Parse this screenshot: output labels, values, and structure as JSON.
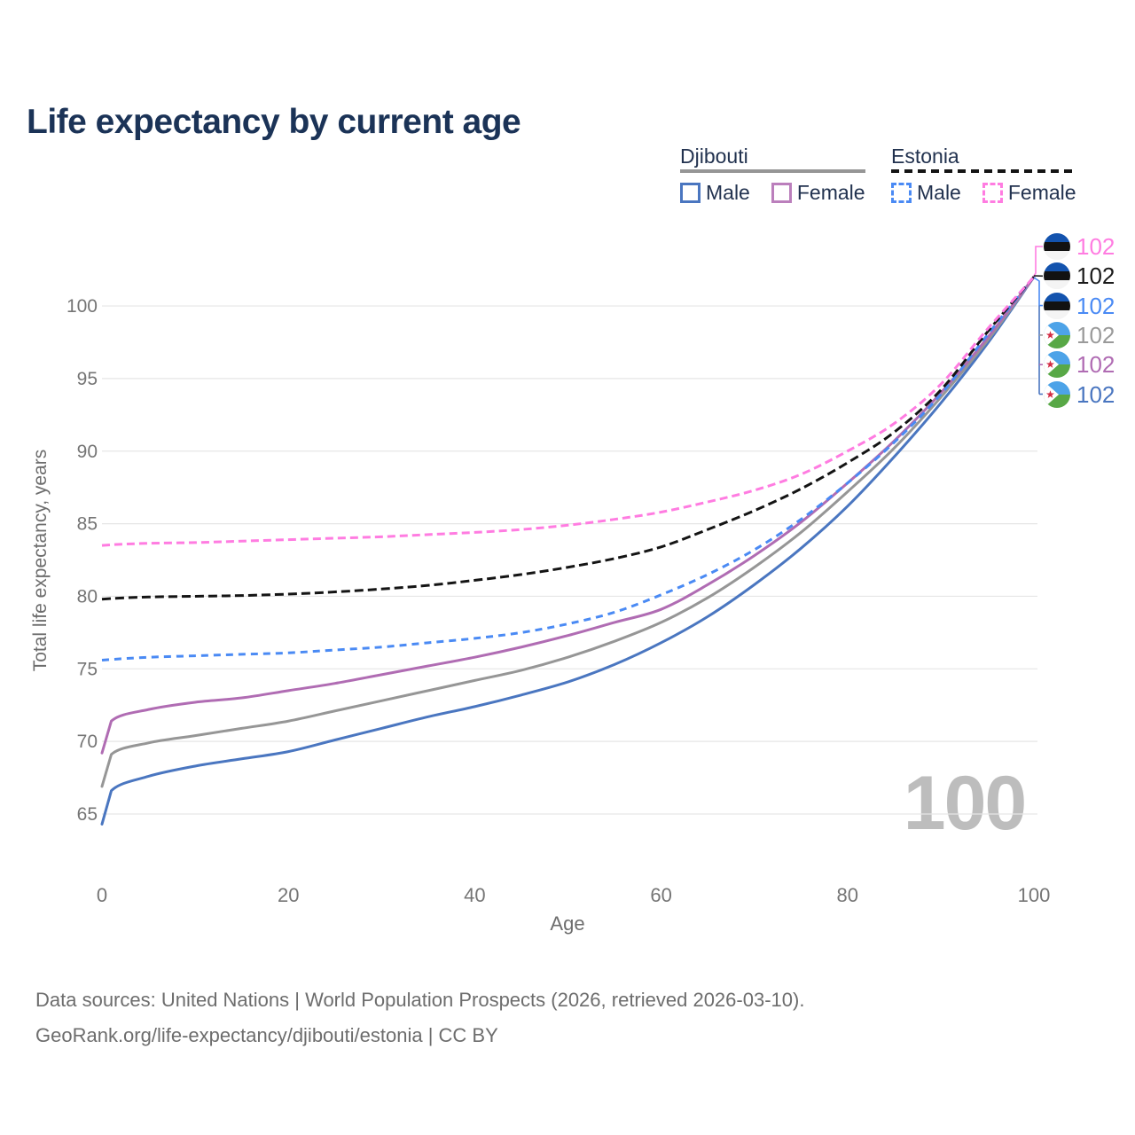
{
  "title": "Life expectancy by current age",
  "legend": {
    "groups": [
      {
        "name": "Djibouti",
        "line_style": "solid",
        "line_color": "#969696",
        "items": [
          {
            "label": "Male",
            "color": "#4a76c0",
            "dashed": false
          },
          {
            "label": "Female",
            "color": "#bb7fbc",
            "dashed": false
          }
        ]
      },
      {
        "name": "Estonia",
        "line_style": "dashed",
        "line_color": "#141414",
        "items": [
          {
            "label": "Male",
            "color": "#4a8af4",
            "dashed": true
          },
          {
            "label": "Female",
            "color": "#ff7ce1",
            "dashed": true
          }
        ]
      }
    ]
  },
  "watermark": "100",
  "endpoints": [
    {
      "flag": "estonia",
      "value": "102",
      "color": "#ff7ce1"
    },
    {
      "flag": "estonia",
      "value": "102",
      "color": "#1a1a1a"
    },
    {
      "flag": "estonia",
      "value": "102",
      "color": "#4a8af4"
    },
    {
      "flag": "djibouti",
      "value": "102",
      "color": "#9a9a9a"
    },
    {
      "flag": "djibouti",
      "value": "102",
      "color": "#b06cb3"
    },
    {
      "flag": "djibouti",
      "value": "102",
      "color": "#4a76c0"
    }
  ],
  "footer": {
    "line1": "Data sources: United Nations | World Population Prospects (2026, retrieved 2026-03-10).",
    "line2": "GeoRank.org/life-expectancy/djibouti/estonia | CC BY"
  },
  "chart_data": {
    "type": "line",
    "title": "Life expectancy by current age",
    "xlabel": "Age",
    "ylabel": "Total life expectancy, years",
    "xlim": [
      0,
      100
    ],
    "ylim": [
      63,
      103
    ],
    "xticks": [
      0,
      20,
      40,
      60,
      80,
      100
    ],
    "yticks": [
      65,
      70,
      75,
      80,
      85,
      90,
      95,
      100
    ],
    "grid": "horizontal",
    "legend_position": "top-right",
    "x": [
      0,
      1,
      5,
      10,
      15,
      20,
      25,
      30,
      35,
      40,
      45,
      50,
      55,
      60,
      65,
      70,
      75,
      80,
      85,
      90,
      95,
      100
    ],
    "series": [
      {
        "name": "Djibouti Male",
        "color": "#4a76c0",
        "dash": null,
        "values": [
          64.3,
          66.6,
          67.6,
          68.3,
          68.8,
          69.3,
          70.1,
          70.9,
          71.7,
          72.4,
          73.2,
          74.1,
          75.3,
          76.8,
          78.6,
          80.8,
          83.3,
          86.2,
          89.6,
          93.3,
          97.4,
          102
        ]
      },
      {
        "name": "Djibouti Female",
        "color": "#b06cb3",
        "dash": null,
        "values": [
          69.2,
          71.4,
          72.2,
          72.7,
          73.0,
          73.5,
          74.0,
          74.6,
          75.2,
          75.8,
          76.5,
          77.3,
          78.2,
          79.1,
          80.8,
          82.8,
          85.1,
          87.8,
          90.7,
          94.0,
          97.8,
          102
        ]
      },
      {
        "name": "Djibouti Total",
        "color": "#969696",
        "dash": null,
        "values": [
          66.9,
          69.1,
          69.9,
          70.4,
          70.9,
          71.4,
          72.1,
          72.8,
          73.5,
          74.2,
          74.9,
          75.8,
          76.9,
          78.2,
          79.9,
          82.0,
          84.4,
          87.2,
          90.2,
          93.7,
          97.6,
          102
        ]
      },
      {
        "name": "Estonia Male",
        "color": "#4a8af4",
        "dash": "8 6",
        "values": [
          75.6,
          75.65,
          75.8,
          75.9,
          76.0,
          76.1,
          76.3,
          76.5,
          76.8,
          77.1,
          77.5,
          78.1,
          78.9,
          80.1,
          81.5,
          83.2,
          85.3,
          87.8,
          90.6,
          93.9,
          98.0,
          102
        ]
      },
      {
        "name": "Estonia Female",
        "color": "#ff7ce1",
        "dash": "9 5",
        "values": [
          83.5,
          83.55,
          83.65,
          83.7,
          83.8,
          83.9,
          84.0,
          84.1,
          84.25,
          84.4,
          84.6,
          84.9,
          85.3,
          85.8,
          86.5,
          87.3,
          88.4,
          90.0,
          91.9,
          94.6,
          98.4,
          102
        ]
      },
      {
        "name": "Estonia Total",
        "color": "#141414",
        "dash": "10 5",
        "values": [
          79.8,
          79.85,
          79.95,
          80.0,
          80.05,
          80.15,
          80.3,
          80.5,
          80.75,
          81.1,
          81.5,
          82.0,
          82.6,
          83.4,
          84.6,
          85.9,
          87.4,
          89.2,
          91.3,
          94.2,
          98.2,
          102
        ]
      }
    ]
  }
}
